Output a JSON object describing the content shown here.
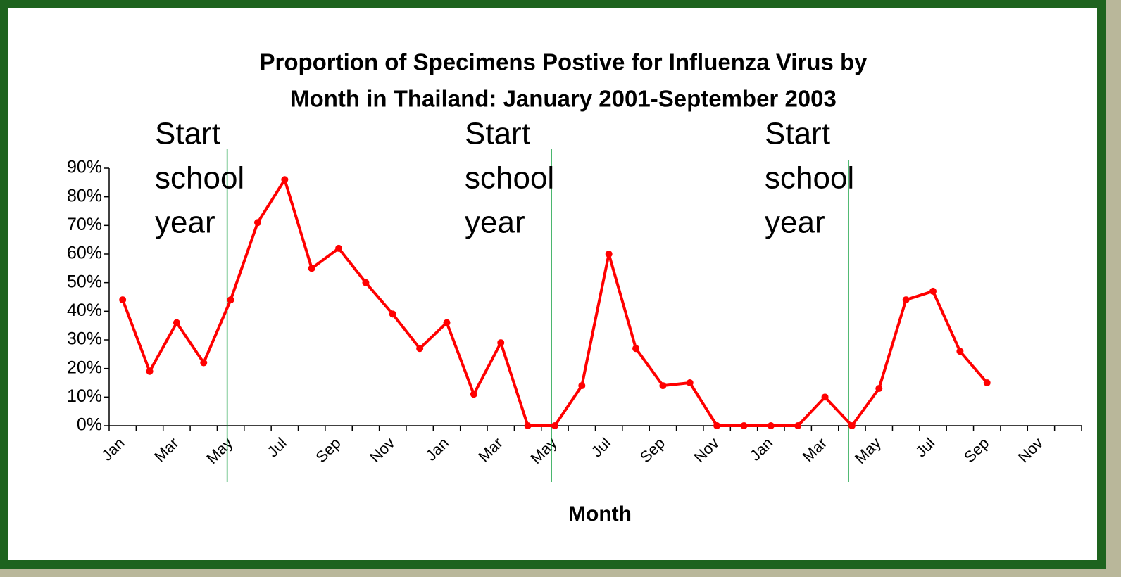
{
  "chart_data": {
    "type": "line",
    "title": [
      "Proportion of Specimens Postive for Influenza Virus by",
      "Month in Thailand: January 2001-September 2003"
    ],
    "x_label": "Month",
    "categories": [
      "Jan",
      null,
      "Mar",
      null,
      "May",
      null,
      "Jul",
      null,
      "Sep",
      null,
      "Nov",
      null,
      "Jan",
      null,
      "Mar",
      null,
      "May",
      null,
      "Jul",
      null,
      "Sep",
      null,
      "Nov",
      null,
      "Jan",
      null,
      "Mar",
      null,
      "May",
      null,
      "Jul",
      null,
      "Sep",
      null,
      "Nov",
      null
    ],
    "series": [
      {
        "color": "#ff0000",
        "values": [
          44,
          19,
          36,
          22,
          44,
          71,
          86,
          55,
          62,
          50,
          39,
          27,
          36,
          11,
          29,
          0,
          0,
          14,
          60,
          27,
          14,
          15,
          0,
          0,
          0,
          0,
          10,
          0,
          13,
          44,
          47,
          26,
          15,
          null,
          null,
          null
        ]
      }
    ],
    "ylim": [
      0,
      90
    ],
    "yticks": [
      {
        "value": 0,
        "label": "0%"
      },
      {
        "value": 10,
        "label": "10%"
      },
      {
        "value": 20,
        "label": "20%"
      },
      {
        "value": 30,
        "label": "30%"
      },
      {
        "value": 40,
        "label": "40%"
      },
      {
        "value": 50,
        "label": "50%"
      },
      {
        "value": 60,
        "label": "60%"
      },
      {
        "value": 70,
        "label": "70%"
      },
      {
        "value": 80,
        "label": "80%"
      },
      {
        "value": 90,
        "label": "90%"
      }
    ],
    "annotations": [
      [
        "Start",
        "school",
        "year"
      ],
      [
        "Start",
        "school",
        "year"
      ],
      [
        "Start",
        "school",
        "year"
      ]
    ],
    "annotation_color": "#009933"
  }
}
